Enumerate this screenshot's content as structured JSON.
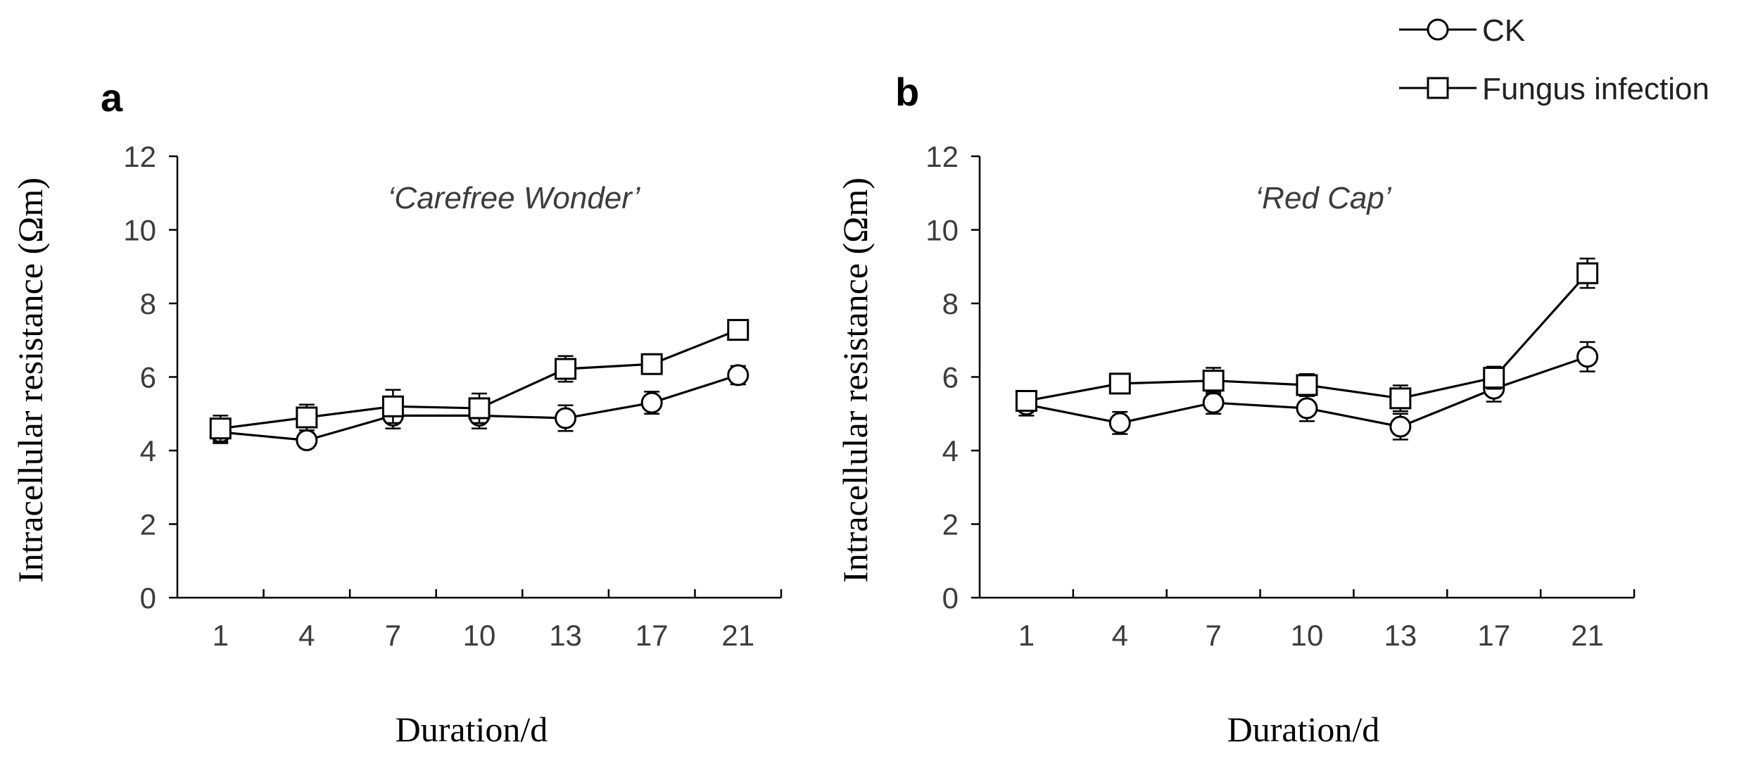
{
  "chart_data": [
    {
      "type": "line",
      "panel_label": "a",
      "subtitle": "‘Carefree Wonder’",
      "xlabel": "Duration/d",
      "ylabel": "Intracellular resistance (Ωm)",
      "categories": [
        "1",
        "4",
        "7",
        "10",
        "13",
        "17",
        "21"
      ],
      "ylim": [
        0,
        12
      ],
      "yticks": [
        "0",
        "2",
        "4",
        "6",
        "8",
        "10",
        "12"
      ],
      "series": [
        {
          "name": "CK",
          "marker": "circle",
          "values": [
            4.5,
            4.28,
            4.95,
            4.95,
            4.88,
            5.3,
            6.05
          ],
          "errors": [
            0.3,
            0.2,
            0.35,
            0.35,
            0.35,
            0.3,
            0.25
          ]
        },
        {
          "name": "Fungus infection",
          "marker": "square",
          "values": [
            4.6,
            4.9,
            5.2,
            5.15,
            6.22,
            6.35,
            7.28
          ],
          "errors": [
            0.35,
            0.35,
            0.45,
            0.4,
            0.35,
            0.25,
            0.2
          ]
        }
      ]
    },
    {
      "type": "line",
      "panel_label": "b",
      "subtitle": "‘Red Cap’",
      "xlabel": "Duration/d",
      "ylabel": "Intracellular resistance (Ωm)",
      "categories": [
        "1",
        "4",
        "7",
        "10",
        "13",
        "17",
        "21"
      ],
      "ylim": [
        0,
        12
      ],
      "yticks": [
        "0",
        "2",
        "4",
        "6",
        "8",
        "10",
        "12"
      ],
      "series": [
        {
          "name": "CK",
          "marker": "circle",
          "values": [
            5.25,
            4.75,
            5.3,
            5.15,
            4.65,
            5.68,
            6.55
          ],
          "errors": [
            0.3,
            0.3,
            0.3,
            0.35,
            0.35,
            0.35,
            0.4
          ]
        },
        {
          "name": "Fungus infection",
          "marker": "square",
          "values": [
            5.35,
            5.82,
            5.9,
            5.78,
            5.42,
            5.98,
            8.82
          ],
          "errors": [
            0.2,
            0.25,
            0.35,
            0.3,
            0.35,
            0.3,
            0.4
          ]
        }
      ]
    }
  ],
  "legend": {
    "items": [
      {
        "name": "CK",
        "marker": "circle"
      },
      {
        "name": "Fungus infection",
        "marker": "square"
      }
    ]
  }
}
